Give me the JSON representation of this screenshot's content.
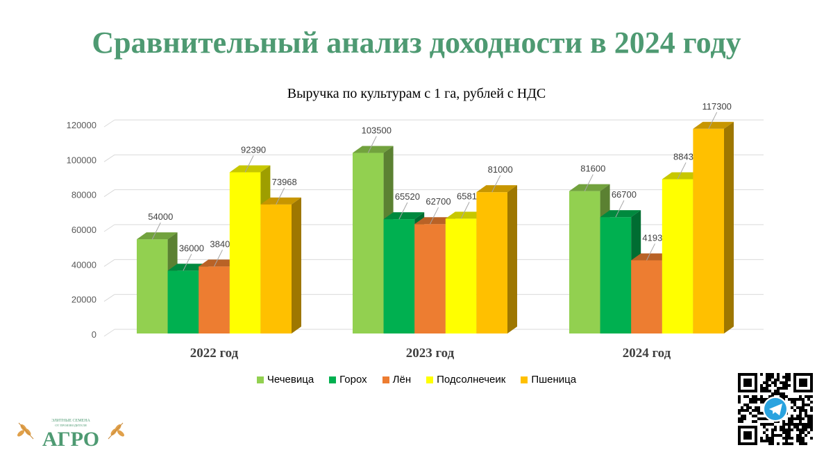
{
  "title": "Сравнительный анализ доходности в 2024 году",
  "logo": {
    "line1": "ЭЛИТНЫЕ СЕМЕНА",
    "line2": "ОТ ПРОИЗВОДИТЕЛЯ",
    "name": "АГРО"
  },
  "chart_data": {
    "type": "bar",
    "title": "Выручка по культурам с 1 га, рублей с НДС",
    "categories": [
      "2022 год",
      "2023 год",
      "2024 год"
    ],
    "ylim": [
      0,
      120000
    ],
    "yticks": [
      "0",
      "20000",
      "40000",
      "60000",
      "80000",
      "100000",
      "120000"
    ],
    "grid": true,
    "legend_position": "bottom",
    "series": [
      {
        "name": "Чечевица",
        "color": "#92d050",
        "values": [
          54000,
          103500,
          81600
        ]
      },
      {
        "name": "Горох",
        "color": "#00b050",
        "values": [
          36000,
          65520,
          66700
        ]
      },
      {
        "name": "Лён",
        "color": "#ed7d31",
        "values": [
          38400,
          62700,
          41936
        ]
      },
      {
        "name": "Подсолнечеик",
        "color": "#ffff00",
        "values": [
          92390,
          65815,
          88430
        ]
      },
      {
        "name": "Пшеница",
        "color": "#ffc000",
        "values": [
          73968,
          81000,
          117300
        ]
      }
    ]
  }
}
